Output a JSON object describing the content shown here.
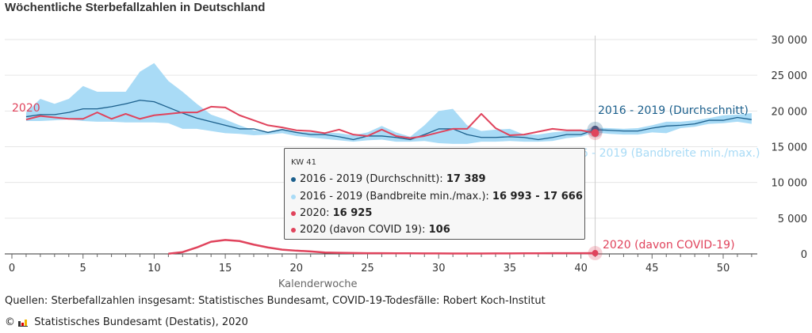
{
  "title": "Wöchentliche Sterbefallzahlen in Deutschland",
  "chart_data": {
    "type": "line",
    "title": "Wöchentliche Sterbefallzahlen in Deutschland",
    "xlabel": "Kalenderwoche",
    "ylabel": "",
    "xlim": [
      0,
      52
    ],
    "ylim": [
      0,
      30000
    ],
    "x_ticks": [
      "0",
      "5",
      "10",
      "15",
      "20",
      "25",
      "30",
      "35",
      "40",
      "45",
      "50"
    ],
    "y_ticks": [
      "0",
      "5 000",
      "10 000",
      "15 000",
      "20 000",
      "25 000",
      "30 000"
    ],
    "grid": true,
    "series": [
      {
        "name": "2016 - 2019 (Bandbreite min./max.)",
        "type": "area",
        "color": "#a9dbf6",
        "x_start": 1,
        "max": [
          19800,
          21700,
          21000,
          21700,
          23500,
          22700,
          22700,
          22700,
          25500,
          26700,
          24200,
          22700,
          21000,
          19500,
          18800,
          18000,
          17300,
          17100,
          17500,
          17100,
          17000,
          17000,
          16900,
          16600,
          17000,
          17900,
          17000,
          16400,
          18000,
          20000,
          20300,
          18000,
          17200,
          17400,
          17500,
          16700,
          16700,
          17000,
          17200,
          17300,
          17666,
          17600,
          17500,
          17600,
          18000,
          18500,
          18500,
          18700,
          19000,
          19400,
          19500,
          19700
        ],
        "min": [
          18600,
          18600,
          18700,
          18800,
          18600,
          18500,
          18500,
          18400,
          18400,
          18400,
          18300,
          17500,
          17500,
          17200,
          16900,
          16800,
          16600,
          16700,
          16900,
          16500,
          16300,
          16100,
          15900,
          15700,
          15900,
          16000,
          15700,
          15700,
          15800,
          15500,
          15400,
          15400,
          15700,
          15700,
          15800,
          15700,
          15700,
          15800,
          16200,
          16400,
          16993,
          16800,
          16700,
          16700,
          17000,
          16900,
          17600,
          17800,
          18200,
          18300,
          18500,
          18200
        ]
      },
      {
        "name": "2016 - 2019 (Durchschnitt)",
        "color": "#1b5f8c",
        "x_start": 1,
        "values": [
          19200,
          19500,
          19500,
          19800,
          20300,
          20300,
          20600,
          21000,
          21500,
          21300,
          20500,
          19700,
          19000,
          18500,
          18000,
          17500,
          17500,
          17000,
          17400,
          17000,
          16700,
          16700,
          16400,
          16000,
          16500,
          16500,
          16300,
          16000,
          16700,
          17500,
          17500,
          16700,
          16300,
          16300,
          16400,
          16300,
          16000,
          16300,
          16700,
          16700,
          17389,
          17300,
          17200,
          17200,
          17600,
          17900,
          18000,
          18200,
          18700,
          18700,
          19100,
          18800
        ]
      },
      {
        "name": "2020",
        "color": "#e0435c",
        "x_start": 1,
        "values": [
          18800,
          19300,
          19100,
          18900,
          18900,
          19800,
          18900,
          19600,
          18900,
          19400,
          19600,
          19800,
          19800,
          20600,
          20500,
          19400,
          18700,
          18000,
          17700,
          17300,
          17200,
          16900,
          17400,
          16700,
          16500,
          17400,
          16500,
          16200,
          16500,
          17000,
          17500,
          17500,
          19600,
          17600,
          16600,
          16700,
          17100,
          17500,
          17300,
          17300,
          16925
        ]
      },
      {
        "name": "2020 (davon COVID-19)",
        "color": "#e0435c",
        "x_start": 11,
        "values": [
          30,
          250,
          900,
          1700,
          1950,
          1800,
          1300,
          900,
          600,
          450,
          350,
          200,
          150,
          120,
          100,
          90,
          80,
          80,
          70,
          70,
          60,
          60,
          60,
          70,
          70,
          80,
          80,
          90,
          90,
          100,
          106
        ]
      }
    ],
    "annotations": {
      "label_2020": "2020",
      "label_avg": "2016 - 2019 (Durchschnitt)",
      "label_band": "2016 - 2019 (Bandbreite min./max.)",
      "label_covid": "2020 (davon COVID-19)"
    },
    "highlight_week": 41
  },
  "tooltip": {
    "header": "KW 41",
    "rows": [
      {
        "label": "2016 - 2019 (Durchschnitt): ",
        "value": "17 389",
        "color": "#1b5f8c"
      },
      {
        "label": "2016 - 2019 (Bandbreite min./max.): ",
        "value": "16 993 - 17 666",
        "color": "#a9dbf6"
      },
      {
        "label": "2020: ",
        "value": "16 925",
        "color": "#e0435c"
      },
      {
        "label": "2020 (davon COVID 19): ",
        "value": "106",
        "color": "#e0435c"
      }
    ]
  },
  "footer": {
    "sources": "Quellen: Sterbefallzahlen insgesamt: Statistisches Bundesamt, COVID-19-Todesfälle: Robert Koch-Institut",
    "copyright": "©",
    "publisher": "Statistisches Bundesamt (Destatis), 2020"
  }
}
